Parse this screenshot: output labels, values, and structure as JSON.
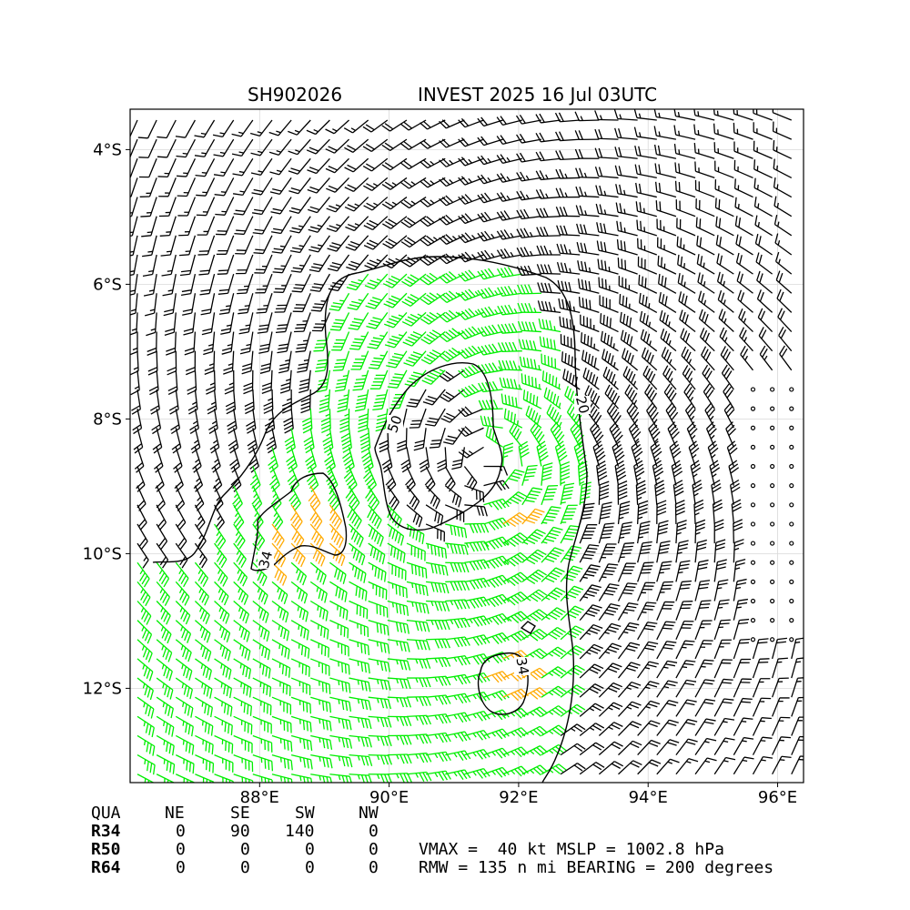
{
  "title": {
    "left": "SH902026",
    "right": "INVEST 2025 16 Jul 03UTC"
  },
  "chart_data": {
    "type": "wind_barb_map",
    "xlim": [
      86.0,
      96.4
    ],
    "ylim": [
      -13.4,
      -3.4
    ],
    "x_ticks": [
      {
        "value": 88,
        "label": "88°E"
      },
      {
        "value": 90,
        "label": "90°E"
      },
      {
        "value": 92,
        "label": "92°E"
      },
      {
        "value": 94,
        "label": "94°E"
      },
      {
        "value": 96,
        "label": "96°E"
      }
    ],
    "y_ticks": [
      {
        "value": -4,
        "label": "4°S"
      },
      {
        "value": -6,
        "label": "6°S"
      },
      {
        "value": -8,
        "label": "8°S"
      },
      {
        "value": -10,
        "label": "10°S"
      },
      {
        "value": -12,
        "label": "12°S"
      }
    ],
    "grid": true,
    "center": {
      "lon": 91.5,
      "lat": -8.6
    },
    "rotation": "clockwise",
    "vmax_kt": 40,
    "barb_colors": {
      "below_34": "#000000",
      "34_to_50": "#00ee00",
      "above_50": "#ffaa00"
    },
    "contours": [
      {
        "label": "20"
      },
      {
        "label": "34"
      },
      {
        "label": "34"
      },
      {
        "label": "50"
      }
    ],
    "quadrant_table": {
      "header": [
        "QUA",
        "NE",
        "SE",
        "SW",
        "NW"
      ],
      "rows": [
        {
          "label": "R34",
          "values": [
            "0",
            "90",
            "140",
            "0"
          ]
        },
        {
          "label": "R50",
          "values": [
            "0",
            "0",
            "0",
            "0"
          ]
        },
        {
          "label": "R64",
          "values": [
            "0",
            "0",
            "0",
            "0"
          ]
        }
      ]
    },
    "info_lines": [
      "VMAX =  40 kt MSLP = 1002.8 hPa",
      "RMW = 135 n mi BEARING = 200 degrees"
    ]
  }
}
